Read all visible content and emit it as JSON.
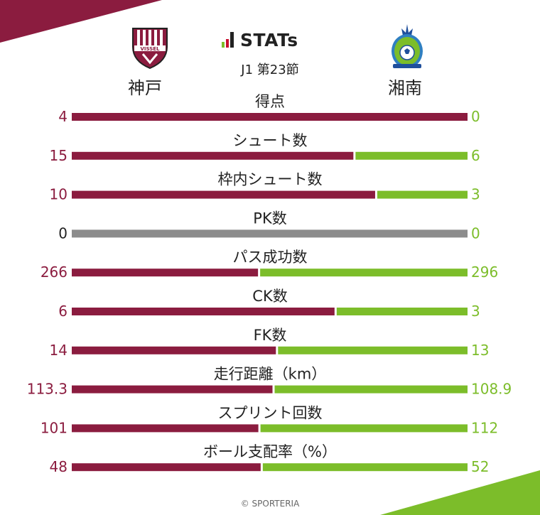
{
  "header": {
    "brand": "STATs",
    "round": "J1 第23節",
    "home_team": "神戸",
    "away_team": "湘南",
    "home_crest_text": "VISSEL"
  },
  "colors": {
    "home": "#8b1c3f",
    "away": "#7cbd2a",
    "neutral": "#8c8c8c",
    "brand_bar_green": "#7cbd2a",
    "brand_bar_red": "#c8102e"
  },
  "chart_data": {
    "type": "bar",
    "orientation": "horizontal-diverging",
    "categories": [
      "得点",
      "シュート数",
      "枠内シュート数",
      "PK数",
      "パス成功数",
      "CK数",
      "FK数",
      "走行距離（km）",
      "スプリント回数",
      "ボール支配率（%）"
    ],
    "series": [
      {
        "name": "神戸",
        "labels": [
          "4",
          "15",
          "10",
          "0",
          "266",
          "6",
          "14",
          "113.3",
          "101",
          "48"
        ],
        "values": [
          4,
          15,
          10,
          0,
          266,
          6,
          14,
          113.3,
          101,
          48
        ]
      },
      {
        "name": "湘南",
        "labels": [
          "0",
          "6",
          "3",
          "0",
          "296",
          "3",
          "13",
          "108.9",
          "112",
          "52"
        ],
        "values": [
          0,
          6,
          3,
          0,
          296,
          3,
          13,
          108.9,
          112,
          52
        ]
      }
    ]
  },
  "footer": {
    "credit": "© SPORTERIA"
  }
}
